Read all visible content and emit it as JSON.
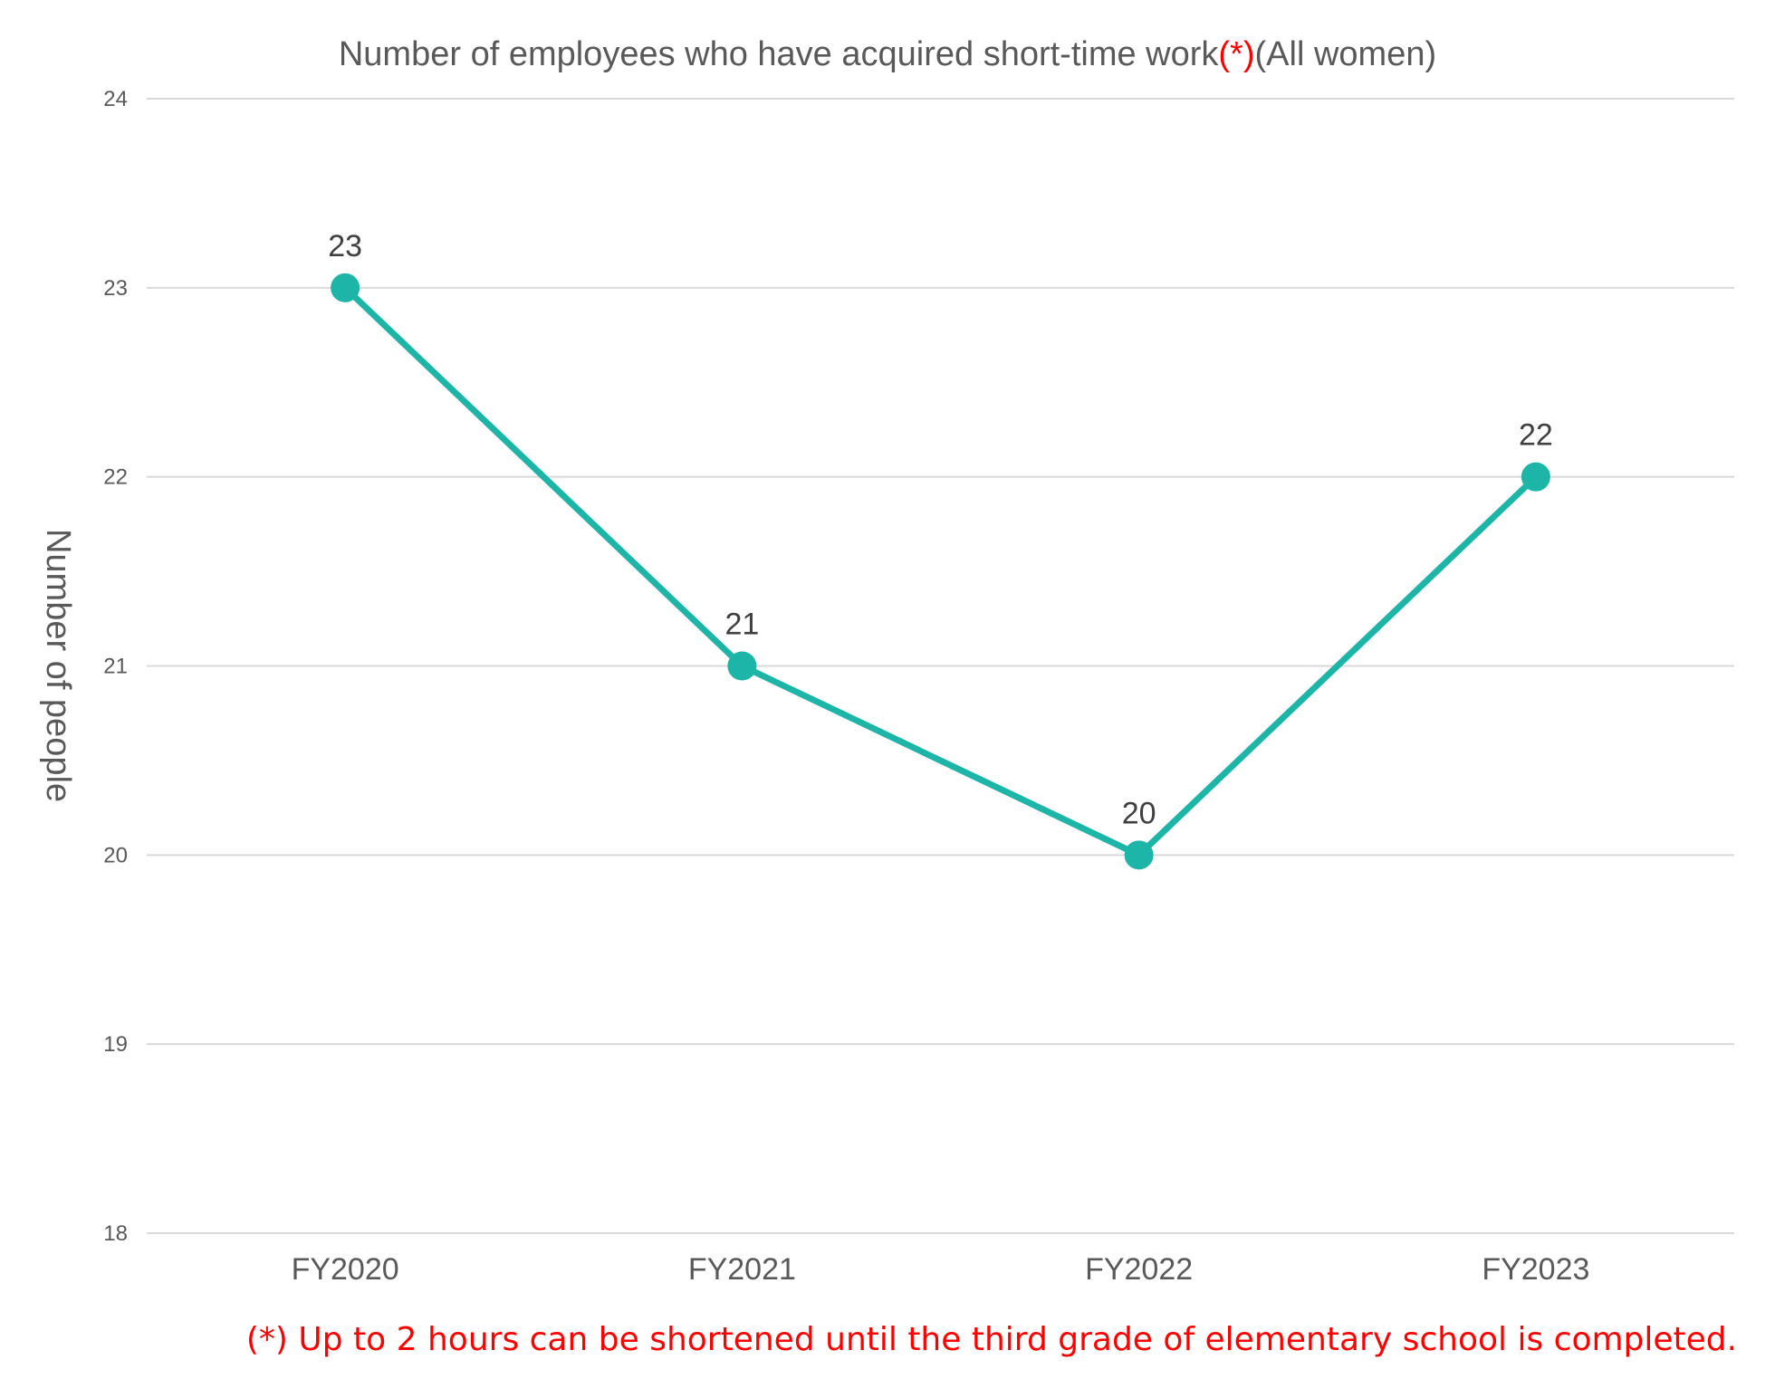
{
  "chart_data": {
    "type": "line",
    "title": "Number of employees who have acquired short-time work",
    "title_mark": "(*)",
    "title_suffix": "(All women)",
    "ylabel": "Number of people",
    "xlabel": "",
    "categories": [
      "FY2020",
      "FY2021",
      "FY2022",
      "FY2023"
    ],
    "series": [
      {
        "values": [
          23,
          21,
          20,
          22
        ],
        "color": "#1cb5a8"
      }
    ],
    "ylim": [
      18,
      24
    ],
    "yticks": [
      18,
      19,
      20,
      21,
      22,
      23,
      24
    ],
    "grid": true,
    "data_labels": true,
    "footnote": "(*) Up to 2 hours can be shortened until the third grade of elementary school is completed.",
    "colors": {
      "line": "#1cb5a8",
      "footnote": "#ff0000",
      "title_mark": "#ff0000",
      "text": "#595959"
    }
  }
}
